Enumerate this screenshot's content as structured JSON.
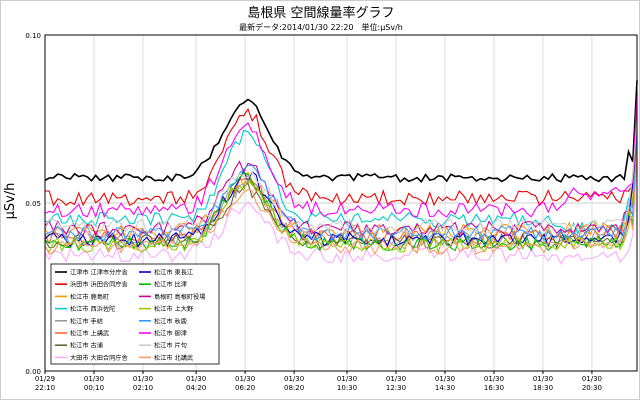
{
  "chart_data": {
    "type": "line",
    "title": "島根県 空間線量率グラフ",
    "subtitle": "最新データ:2014/01/30 22:20　単位:μSv/h",
    "ylabel": "μSv/h",
    "xlabel": "",
    "ylim": [
      0,
      0.1
    ],
    "y_ticks": [
      "0.00",
      "0.05",
      "0.10"
    ],
    "grid": true,
    "legend_position": "bottom-left",
    "x_ticks": [
      {
        "date": "01/29",
        "time": "22:10"
      },
      {
        "date": "01/30",
        "time": "00:10"
      },
      {
        "date": "01/30",
        "time": "02:10"
      },
      {
        "date": "01/30",
        "time": "04:20"
      },
      {
        "date": "01/30",
        "time": "06:20"
      },
      {
        "date": "01/30",
        "time": "08:20"
      },
      {
        "date": "01/30",
        "time": "10:30"
      },
      {
        "date": "01/30",
        "time": "12:30"
      },
      {
        "date": "01/30",
        "time": "14:30"
      },
      {
        "date": "01/30",
        "time": "16:30"
      },
      {
        "date": "01/30",
        "time": "18:30"
      },
      {
        "date": "01/30",
        "time": "20:30"
      }
    ],
    "x_hours": [
      0,
      2,
      4,
      6.17,
      8.17,
      10.17,
      12.33,
      14.33,
      16.33,
      18.33,
      20.33,
      22.33
    ],
    "x_range_hours": [
      0,
      24.17
    ],
    "series": [
      {
        "name": "江津市 江津市分庁舎",
        "color": "#000000",
        "base": 0.0575,
        "peak": 0.08,
        "late": 0.0575
      },
      {
        "name": "浜田市 浜田合同庁舎",
        "color": "#ee0000",
        "base": 0.0515,
        "peak": 0.077,
        "late": 0.052
      },
      {
        "name": "松江市 鹿島町",
        "color": "#ff9900",
        "base": 0.0415,
        "peak": 0.057,
        "late": 0.042
      },
      {
        "name": "松江市 西浜佐陀",
        "color": "#00cccc",
        "base": 0.045,
        "peak": 0.07,
        "late": 0.043
      },
      {
        "name": "松江市 手結",
        "color": "#999999",
        "base": 0.0395,
        "peak": 0.055,
        "late": 0.04
      },
      {
        "name": "松江市 上講武",
        "color": "#ff6633",
        "base": 0.04,
        "peak": 0.056,
        "late": 0.041
      },
      {
        "name": "松江市 古浦",
        "color": "#666633",
        "base": 0.0385,
        "peak": 0.054,
        "late": 0.039
      },
      {
        "name": "大田市 大田合同庁舎",
        "color": "#ffaaff",
        "base": 0.0345,
        "peak": 0.049,
        "late": 0.0335
      },
      {
        "name": "松江市 東長江",
        "color": "#0000cc",
        "base": 0.039,
        "peak": 0.058,
        "late": 0.04
      },
      {
        "name": "松江市 比津",
        "color": "#00bb00",
        "base": 0.038,
        "peak": 0.057,
        "late": 0.039
      },
      {
        "name": "島根町 島根町役場",
        "color": "#cc0099",
        "base": 0.0425,
        "peak": 0.061,
        "late": 0.043
      },
      {
        "name": "松江市 上大野",
        "color": "#99cc00",
        "base": 0.0375,
        "peak": 0.056,
        "late": 0.038
      },
      {
        "name": "松江市 秋鹿",
        "color": "#3399ff",
        "base": 0.041,
        "peak": 0.06,
        "late": 0.041
      },
      {
        "name": "松江市 御津",
        "color": "#ff00ff",
        "base": 0.048,
        "peak": 0.073,
        "late": 0.0525
      },
      {
        "name": "松江市 片句",
        "color": "#cccccc",
        "base": 0.043,
        "peak": 0.059,
        "late": 0.044
      },
      {
        "name": "松江市 北講武",
        "color": "#ff9966",
        "base": 0.037,
        "peak": 0.053,
        "late": 0.038
      }
    ]
  }
}
